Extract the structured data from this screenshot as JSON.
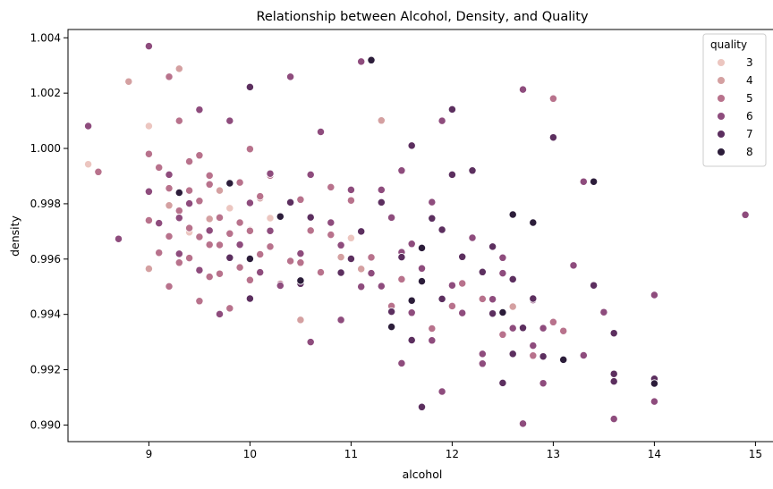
{
  "chart_data": {
    "type": "scatter",
    "title": "Relationship between Alcohol, Density, and Quality",
    "xlabel": "alcohol",
    "ylabel": "density",
    "xlim": [
      8.2,
      15.2
    ],
    "ylim": [
      0.9894,
      1.0043
    ],
    "xticks": [
      "9",
      "10",
      "11",
      "12",
      "13",
      "14",
      "15"
    ],
    "yticks": [
      "0.990",
      "0.992",
      "0.994",
      "0.996",
      "0.998",
      "1.000",
      "1.002",
      "1.004"
    ],
    "grid": false,
    "legend": {
      "title": "quality",
      "placement": "top-right",
      "entries": [
        "3",
        "4",
        "5",
        "6",
        "7",
        "8"
      ]
    },
    "colors": {
      "3": "#ecc6c0",
      "4": "#d4a0a1",
      "5": "#b8728c",
      "6": "#8e4c7d",
      "7": "#5c2f5f",
      "8": "#2c1d3a"
    },
    "series": [
      {
        "name": "3",
        "points": [
          [
            8.4,
            0.99943
          ],
          [
            9.0,
            1.00081
          ],
          [
            10.0,
            0.99706
          ],
          [
            11.0,
            0.99676
          ],
          [
            9.8,
            0.99784
          ],
          [
            10.2,
            0.99748
          ],
          [
            9.4,
            0.99697
          ]
        ]
      },
      {
        "name": "4",
        "points": [
          [
            8.8,
            1.00242
          ],
          [
            9.3,
            1.00288
          ],
          [
            11.3,
            1.00101
          ],
          [
            9.2,
            0.99794
          ],
          [
            10.5,
            0.9938
          ],
          [
            9.0,
            0.99565
          ],
          [
            11.1,
            0.99564
          ],
          [
            9.6,
            0.99745
          ],
          [
            10.9,
            0.99607
          ],
          [
            12.6,
            0.99428
          ],
          [
            9.7,
            0.99848
          ],
          [
            10.1,
            0.9982
          ]
        ]
      },
      {
        "name": "5",
        "points": [
          [
            8.5,
            0.99915
          ],
          [
            9.2,
            1.00259
          ],
          [
            9.0,
            0.9998
          ],
          [
            9.1,
            0.99931
          ],
          [
            9.2,
            0.99856
          ],
          [
            9.3,
            0.99775
          ],
          [
            9.4,
            0.99712
          ],
          [
            9.5,
            0.9968
          ],
          [
            9.5,
            0.9981
          ],
          [
            9.6,
            0.99652
          ],
          [
            9.7,
            0.9975
          ],
          [
            9.8,
            0.99607
          ],
          [
            9.9,
            0.99732
          ],
          [
            10.0,
            0.99702
          ],
          [
            10.1,
            0.99827
          ],
          [
            10.2,
            0.99645
          ],
          [
            10.3,
            0.99756
          ],
          [
            10.4,
            0.99593
          ],
          [
            10.5,
            0.99815
          ],
          [
            10.6,
            0.99703
          ],
          [
            10.7,
            0.99552
          ],
          [
            10.8,
            0.99688
          ],
          [
            11.0,
            0.99812
          ],
          [
            11.2,
            0.99606
          ],
          [
            9.1,
            0.99623
          ],
          [
            9.2,
            0.99501
          ],
          [
            9.3,
            0.99587
          ],
          [
            9.4,
            0.99848
          ],
          [
            9.5,
            0.99448
          ],
          [
            9.6,
            0.99902
          ],
          [
            9.7,
            0.99547
          ],
          [
            9.8,
            0.99422
          ],
          [
            9.9,
            0.99877
          ],
          [
            10.0,
            0.99524
          ],
          [
            9.4,
            0.99604
          ],
          [
            9.6,
            0.99536
          ],
          [
            9.8,
            0.99692
          ],
          [
            10.2,
            0.99902
          ],
          [
            10.0,
            0.99998
          ],
          [
            11.5,
            0.99527
          ],
          [
            12.0,
            0.9943
          ],
          [
            12.5,
            0.99327
          ],
          [
            13.0,
            0.99372
          ],
          [
            13.1,
            0.9934
          ],
          [
            13.0,
            1.0018
          ],
          [
            12.8,
            0.99251
          ],
          [
            9.3,
            1.001
          ],
          [
            9.5,
            0.99975
          ],
          [
            9.0,
            0.9974
          ],
          [
            9.2,
            0.99682
          ],
          [
            10.5,
            0.99587
          ],
          [
            11.8,
            0.99349
          ],
          [
            12.3,
            0.99456
          ],
          [
            9.9,
            0.9957
          ],
          [
            10.1,
            0.99617
          ],
          [
            10.3,
            0.9951
          ],
          [
            9.6,
            0.9987
          ],
          [
            11.4,
            0.9943
          ],
          [
            12.1,
            0.99512
          ],
          [
            9.7,
            0.99651
          ],
          [
            10.8,
            0.9986
          ],
          [
            9.4,
            0.99953
          ]
        ]
      },
      {
        "name": "6",
        "points": [
          [
            8.4,
            1.00081
          ],
          [
            8.7,
            0.99673
          ],
          [
            9.0,
            1.0037
          ],
          [
            9.0,
            0.99844
          ],
          [
            9.1,
            0.9973
          ],
          [
            9.2,
            0.99905
          ],
          [
            9.3,
            0.99619
          ],
          [
            9.4,
            0.99801
          ],
          [
            9.5,
            0.9956
          ],
          [
            9.5,
            1.0014
          ],
          [
            9.6,
            0.99703
          ],
          [
            9.8,
            1.001
          ],
          [
            9.9,
            0.99652
          ],
          [
            10.0,
            0.99455
          ],
          [
            10.0,
            0.99803
          ],
          [
            10.2,
            0.99702
          ],
          [
            10.4,
            1.00259
          ],
          [
            10.3,
            0.99504
          ],
          [
            10.5,
            0.9962
          ],
          [
            10.6,
            0.99905
          ],
          [
            10.7,
            1.0006
          ],
          [
            10.8,
            0.99732
          ],
          [
            10.9,
            0.9965
          ],
          [
            11.0,
            0.9985
          ],
          [
            11.1,
            1.00314
          ],
          [
            11.2,
            0.99549
          ],
          [
            11.3,
            0.9985
          ],
          [
            11.4,
            0.9975
          ],
          [
            11.5,
            0.99625
          ],
          [
            11.5,
            0.9992
          ],
          [
            11.6,
            0.99406
          ],
          [
            11.7,
            0.99566
          ],
          [
            11.8,
            0.99306
          ],
          [
            11.9,
            0.99121
          ],
          [
            12.0,
            0.99505
          ],
          [
            12.1,
            0.99405
          ],
          [
            12.2,
            0.99677
          ],
          [
            12.3,
            0.99222
          ],
          [
            12.5,
            0.99549
          ],
          [
            12.5,
            0.99605
          ],
          [
            12.6,
            0.9935
          ],
          [
            12.7,
            0.99005
          ],
          [
            12.7,
            1.00213
          ],
          [
            12.8,
            0.99452
          ],
          [
            12.9,
            0.99151
          ],
          [
            13.3,
            0.9988
          ],
          [
            13.5,
            0.99408
          ],
          [
            13.6,
            0.99022
          ],
          [
            14.0,
            0.9947
          ],
          [
            14.0,
            0.99085
          ],
          [
            14.9,
            0.9976
          ],
          [
            11.5,
            0.99223
          ],
          [
            11.9,
            1.001
          ],
          [
            12.4,
            0.99455
          ],
          [
            12.3,
            0.99257
          ],
          [
            12.9,
            0.9935
          ],
          [
            13.2,
            0.99577
          ],
          [
            11.1,
            0.995
          ],
          [
            10.9,
            0.9938
          ],
          [
            10.1,
            0.99552
          ],
          [
            9.7,
            0.99401
          ],
          [
            11.3,
            0.99502
          ],
          [
            11.6,
            0.99655
          ],
          [
            12.8,
            0.99287
          ],
          [
            13.3,
            0.99252
          ],
          [
            10.6,
            0.993
          ],
          [
            9.3,
            0.99749
          ],
          [
            10.2,
            0.99909
          ],
          [
            11.8,
            0.99806
          ]
        ]
      },
      {
        "name": "7",
        "points": [
          [
            10.0,
            1.00222
          ],
          [
            10.0,
            0.99457
          ],
          [
            10.4,
            0.99805
          ],
          [
            10.5,
            0.99511
          ],
          [
            11.0,
            0.99601
          ],
          [
            11.2,
            1.00319
          ],
          [
            11.5,
            0.99607
          ],
          [
            11.6,
            1.0001
          ],
          [
            11.8,
            0.99747
          ],
          [
            11.9,
            0.99706
          ],
          [
            12.0,
            1.00141
          ],
          [
            12.0,
            0.99905
          ],
          [
            12.2,
            0.9992
          ],
          [
            12.4,
            0.99403
          ],
          [
            12.5,
            0.99152
          ],
          [
            12.6,
            0.99527
          ],
          [
            12.7,
            0.99351
          ],
          [
            12.8,
            0.99457
          ],
          [
            12.9,
            0.99248
          ],
          [
            13.0,
            1.0004
          ],
          [
            13.4,
            0.99505
          ],
          [
            13.6,
            0.99185
          ],
          [
            13.6,
            0.99332
          ],
          [
            14.0,
            0.99167
          ],
          [
            11.4,
            0.9941
          ],
          [
            11.7,
            0.99065
          ],
          [
            10.6,
            0.99751
          ],
          [
            11.3,
            0.99805
          ],
          [
            12.1,
            0.99608
          ],
          [
            12.4,
            0.99645
          ],
          [
            11.9,
            0.99456
          ],
          [
            13.6,
            0.99158
          ],
          [
            10.9,
            0.99551
          ],
          [
            11.1,
            0.997
          ],
          [
            12.6,
            0.99257
          ],
          [
            9.8,
            0.99605
          ],
          [
            12.3,
            0.99553
          ],
          [
            11.6,
            0.99307
          ]
        ]
      },
      {
        "name": "8",
        "points": [
          [
            9.8,
            0.99874
          ],
          [
            10.0,
            0.99601
          ],
          [
            11.2,
            1.00319
          ],
          [
            11.7,
            0.9964
          ],
          [
            11.7,
            0.9952
          ],
          [
            12.6,
            0.99761
          ],
          [
            12.8,
            0.99732
          ],
          [
            13.1,
            0.99236
          ],
          [
            13.4,
            0.9988
          ],
          [
            14.0,
            0.9915
          ],
          [
            11.4,
            0.99355
          ],
          [
            12.5,
            0.99407
          ],
          [
            10.5,
            0.99522
          ],
          [
            9.3,
            0.9984
          ],
          [
            10.3,
            0.99754
          ],
          [
            11.6,
            0.9945
          ]
        ]
      }
    ]
  }
}
